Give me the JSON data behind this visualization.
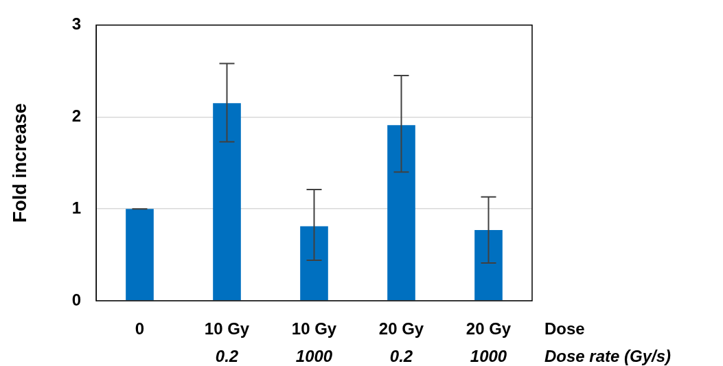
{
  "chart_data": {
    "type": "bar",
    "ylabel": "Fold increase",
    "categories": [
      "0",
      "10 Gy\n0.2",
      "10 Gy\n1000",
      "20 Gy\n0.2",
      "20 Gy\n1000"
    ],
    "series": [
      {
        "color": "#0070c0",
        "values": [
          1.0,
          2.15,
          0.81,
          1.91,
          0.77
        ],
        "errors": [
          0,
          [
            1.73,
            2.58
          ],
          [
            0.44,
            1.21
          ],
          [
            1.4,
            2.45
          ],
          [
            0.41,
            1.13
          ]
        ]
      }
    ],
    "ylim": [
      0,
      3
    ],
    "yticks": [
      0,
      1,
      2,
      3
    ],
    "grid": "y",
    "legend": false,
    "annotations": [
      "Dose",
      "Dose rate (Gy/s)"
    ]
  }
}
